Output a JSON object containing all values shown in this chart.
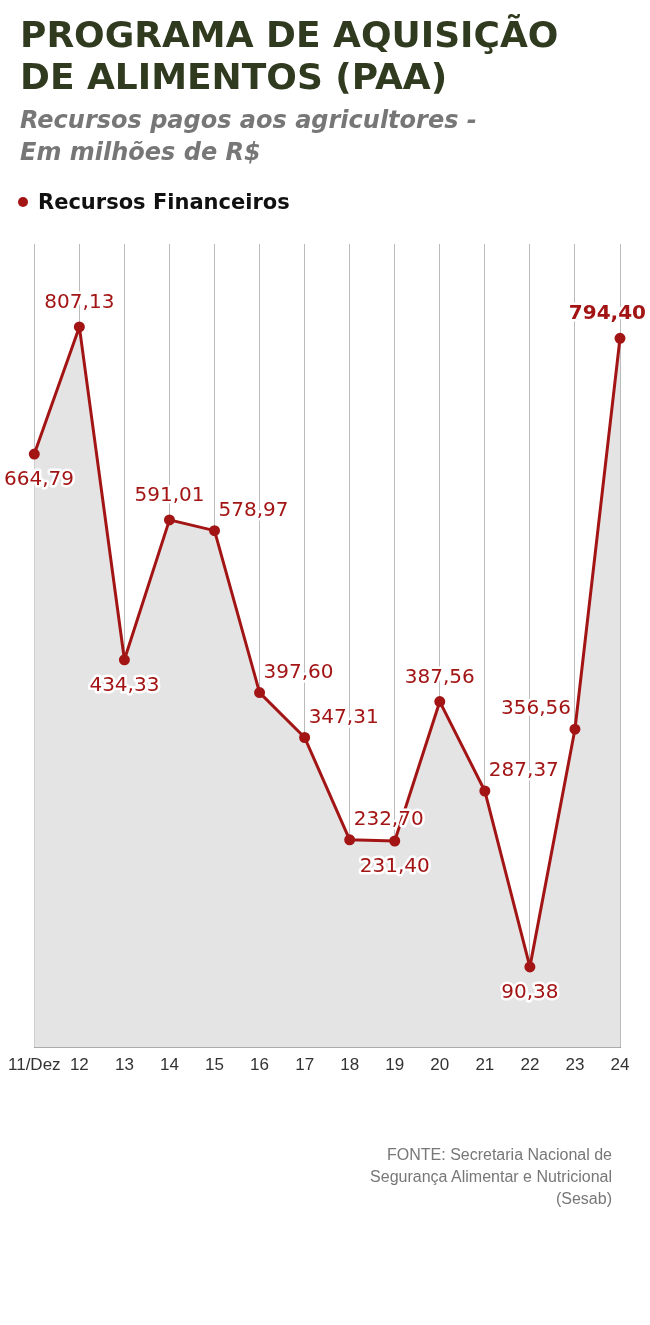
{
  "chart_data": {
    "type": "area",
    "title": "PROGRAMA DE AQUISIÇÃO DE ALIMENTOS (PAA)",
    "subtitle": "Recursos pagos aos agricultores - Em milhões de R$",
    "categories": [
      "11/Dez",
      "12",
      "13",
      "14",
      "15",
      "16",
      "17",
      "18",
      "19",
      "20",
      "21",
      "22",
      "23",
      "24"
    ],
    "series": [
      {
        "name": "Recursos Financeiros",
        "color": "#a31515",
        "values": [
          664.79,
          807.13,
          434.33,
          591.01,
          578.97,
          397.6,
          347.31,
          232.7,
          231.4,
          387.56,
          287.37,
          90.38,
          356.56,
          794.4
        ],
        "value_labels": [
          "664,79",
          "807,13",
          "434,33",
          "591,01",
          "578,97",
          "397,60",
          "347,31",
          "232,70",
          "231,40",
          "387,56",
          "287,37",
          "90,38",
          "356,56",
          "794,40"
        ]
      }
    ],
    "grid": "x",
    "legend": "top left",
    "marker": "circle",
    "line_style": "solid",
    "tick_labels": "x",
    "annotations": [
      "FONTE: Secretaria Nacional de Segurança Alimentar e Nutricional (Sesab)"
    ]
  }
}
